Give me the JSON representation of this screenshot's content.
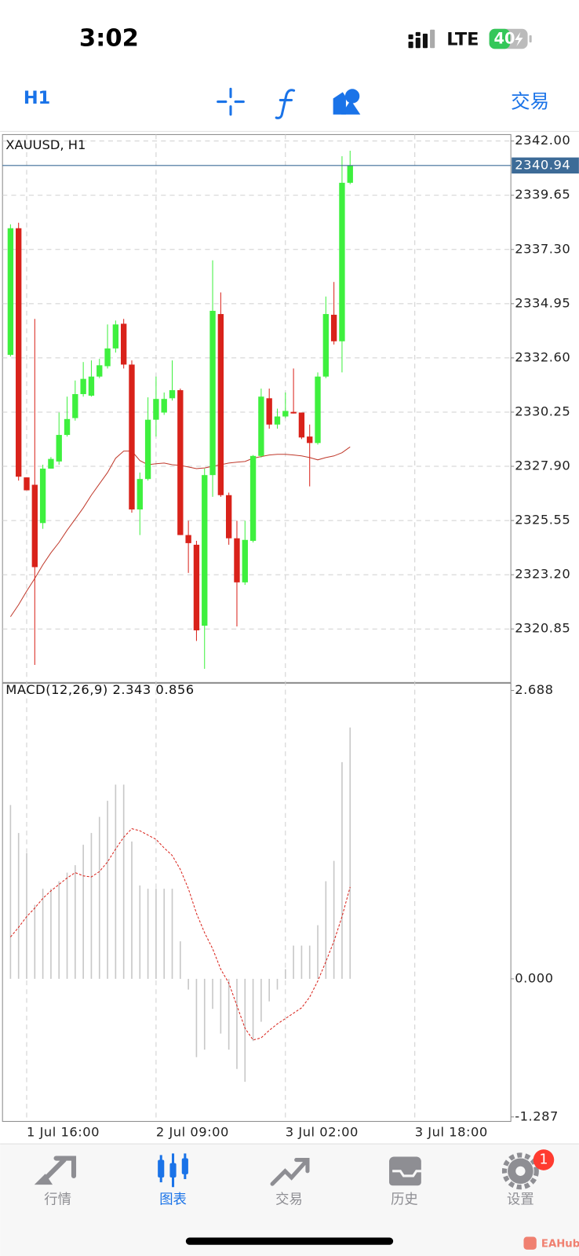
{
  "status_bar": {
    "time": "3:02",
    "network": "LTE",
    "battery": "40"
  },
  "toolbar": {
    "timeframe": "H1",
    "trade": "交易"
  },
  "chart_data": [
    {
      "type": "candlestick",
      "title": "XAUUSD, H1",
      "up_color": "#3ef03e",
      "down_color": "#d9221a",
      "open": [
        2332.73,
        2338.22,
        2327.42,
        2327.1,
        2325.44,
        2327.8,
        2328.11,
        2329.26,
        2329.99,
        2331.03,
        2330.96,
        2331.79,
        2332.24,
        2333.01,
        2334.08,
        2332.31,
        2326.03,
        2327.35,
        2329.92,
        2330.23,
        2330.85,
        2331.2,
        2324.92,
        2324.5,
        2320.99,
        2327.52,
        2334.5,
        2326.65,
        2324.78,
        2322.87,
        2324.67,
        2328.35,
        2330.85,
        2329.71,
        2330.06,
        2330.26,
        2330.23,
        2329.19,
        2328.91,
        2331.79,
        2334.47,
        2333.32,
        2340.19
      ],
      "high": [
        2338.39,
        2338.46,
        2327.42,
        2334.29,
        2327.97,
        2328.3,
        2330.23,
        2330.92,
        2331.62,
        2332.42,
        2332.49,
        2332.56,
        2334.05,
        2334.22,
        2334.29,
        2332.49,
        2327.63,
        2330.89,
        2331.79,
        2331.1,
        2332.49,
        2331.27,
        2325.54,
        2324.67,
        2327.8,
        2336.83,
        2335.44,
        2326.76,
        2325.54,
        2325.54,
        2328.39,
        2331.27,
        2331.27,
        2330.4,
        2331.1,
        2332.14,
        2330.23,
        2329.71,
        2331.97,
        2335.26,
        2335.89,
        2341.34,
        2341.58
      ],
      "low": [
        2332.66,
        2327.28,
        2326.86,
        2319.29,
        2325.19,
        2327.8,
        2327.97,
        2329.19,
        2329.88,
        2330.92,
        2330.92,
        2331.72,
        2332.14,
        2332.83,
        2332.14,
        2325.89,
        2324.92,
        2327.28,
        2329.19,
        2330.13,
        2330.75,
        2324.92,
        2323.28,
        2320.33,
        2319.12,
        2326.58,
        2326.58,
        2324.5,
        2320.96,
        2322.76,
        2324.6,
        2328.28,
        2329.53,
        2329.53,
        2329.99,
        2330.19,
        2329.08,
        2327.03,
        2328.84,
        2331.72,
        2333.18,
        2331.97,
        2340.13
      ],
      "close": [
        2338.22,
        2327.45,
        2326.86,
        2323.53,
        2327.8,
        2328.22,
        2329.26,
        2329.95,
        2331.03,
        2331.69,
        2331.79,
        2332.28,
        2333.01,
        2334.05,
        2332.31,
        2326.03,
        2327.35,
        2329.92,
        2330.82,
        2330.82,
        2331.2,
        2324.92,
        2324.57,
        2320.79,
        2327.52,
        2334.64,
        2326.65,
        2324.78,
        2322.87,
        2324.71,
        2328.35,
        2330.92,
        2329.71,
        2330.06,
        2330.3,
        2330.19,
        2329.15,
        2328.91,
        2331.79,
        2334.5,
        2333.32,
        2340.19,
        2340.94
      ],
      "ma": {
        "color": "#c0392b",
        "values": [
          2321.38,
          2321.9,
          2322.49,
          2323.04,
          2323.63,
          2324.15,
          2324.6,
          2325.13,
          2325.61,
          2326.1,
          2326.65,
          2327.14,
          2327.63,
          2328.25,
          2328.56,
          2328.56,
          2328.15,
          2327.97,
          2328.01,
          2328.04,
          2327.97,
          2327.94,
          2327.87,
          2327.8,
          2327.83,
          2327.9,
          2327.97,
          2328.04,
          2328.08,
          2328.11,
          2328.25,
          2328.32,
          2328.39,
          2328.42,
          2328.42,
          2328.39,
          2328.35,
          2328.28,
          2328.18,
          2328.28,
          2328.35,
          2328.49,
          2328.74
        ]
      },
      "current_price": 2340.94,
      "current_price_color": "#3d6b97",
      "ylim": [
        2318.53,
        2342.28
      ],
      "yticks": [
        {
          "value": 2342,
          "label": "2342.00"
        },
        2339.65,
        {
          "value": 2337.3,
          "label": "2337.30"
        },
        2334.95,
        {
          "value": 2332.6,
          "label": "2332.60"
        },
        2330.25,
        {
          "value": 2327.9,
          "label": "2327.90"
        },
        2325.55,
        {
          "value": 2323.2,
          "label": "2323.20"
        },
        2320.85
      ],
      "xlim": [
        -0.99,
        61.88
      ],
      "xticks": [
        {
          "value": 2,
          "label": "1 Jul 16:00"
        },
        {
          "value": 18,
          "label": "2 Jul 09:00"
        },
        {
          "value": 34,
          "label": "3 Jul 02:00"
        },
        {
          "value": 50,
          "label": "3 Jul 18:00"
        }
      ],
      "grid": true
    },
    {
      "type": "macd",
      "title": "MACD(12,26,9) 2.343 0.856",
      "histogram": {
        "color": "#c8c8c8",
        "values": [
          1.62,
          1.36,
          1.17,
          0.69,
          0.84,
          0.84,
          0.91,
          0.99,
          1.06,
          1.25,
          1.36,
          1.51,
          1.66,
          1.81,
          1.81,
          1.28,
          0.87,
          0.84,
          0.84,
          0.84,
          0.84,
          0.35,
          -0.1,
          -0.73,
          -0.66,
          -0.28,
          -0.51,
          -0.66,
          -0.84,
          -0.96,
          -0.58,
          -0.4,
          -0.21,
          -0.1,
          0.09,
          0.31,
          0.31,
          0.31,
          0.5,
          0.91,
          1.1,
          2.02,
          2.343
        ]
      },
      "signal": {
        "color": "#d9221a",
        "values": [
          0.39,
          0.48,
          0.58,
          0.66,
          0.75,
          0.82,
          0.88,
          0.94,
          0.99,
          0.96,
          0.95,
          1.0,
          1.09,
          1.21,
          1.32,
          1.4,
          1.38,
          1.34,
          1.3,
          1.22,
          1.15,
          1.02,
          0.84,
          0.61,
          0.43,
          0.28,
          0.09,
          -0.04,
          -0.25,
          -0.46,
          -0.57,
          -0.55,
          -0.48,
          -0.42,
          -0.37,
          -0.32,
          -0.27,
          -0.17,
          -0.02,
          0.16,
          0.35,
          0.58,
          0.856
        ]
      },
      "ylim": [
        -1.329,
        2.755
      ],
      "yticks": [
        2.688,
        {
          "value": 0,
          "label": "0.000"
        },
        -1.287
      ]
    }
  ],
  "tab_bar": {
    "tabs": [
      "行情",
      "图表",
      "交易",
      "历史",
      "设置"
    ],
    "active": 1,
    "active_color": "#1a73e8",
    "color": "#8e8e93",
    "badge": 1
  },
  "watermark": "EAHub"
}
